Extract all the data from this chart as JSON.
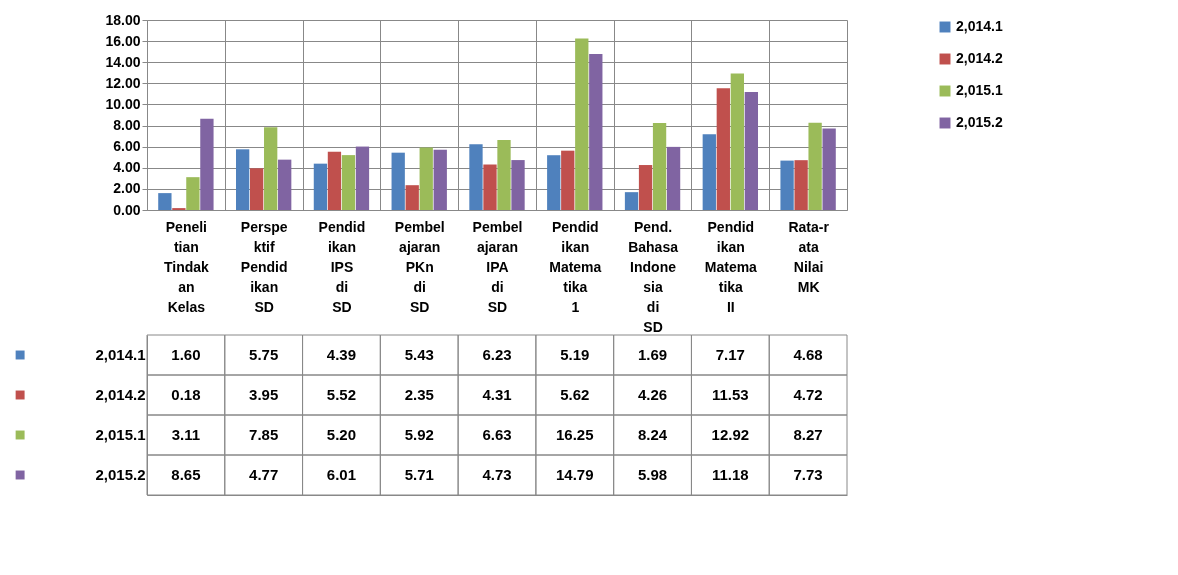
{
  "chart_data": {
    "type": "bar",
    "categories": [
      "Penelitian Tindakan Kelas",
      "Perspektif Pendidikan SD",
      "Pendidikan IPS di SD",
      "Pembelajaran PKn di SD",
      "Pembelajaran IPA di SD",
      "Pendidikan Matematika 1",
      "Pend. Bahasa Indonesia di SD",
      "Pendidikan Matematika II",
      "Rata-rata Nilai MK"
    ],
    "series": [
      {
        "name": "2,014.1",
        "color": "#4f81bd",
        "values": [
          1.6,
          5.75,
          4.39,
          5.43,
          6.23,
          5.19,
          1.69,
          7.17,
          4.68
        ],
        "value_labels": [
          "1.60",
          "5.75",
          "4.39",
          "5.43",
          "6.23",
          "5.19",
          "1.69",
          "7.17",
          "4.68"
        ]
      },
      {
        "name": "2,014.2",
        "color": "#c0504d",
        "values": [
          0.18,
          3.95,
          5.52,
          2.35,
          4.31,
          5.62,
          4.26,
          11.53,
          4.72
        ],
        "value_labels": [
          "0.18",
          "3.95",
          "5.52",
          "2.35",
          "4.31",
          "5.62",
          "4.26",
          "11.53",
          "4.72"
        ]
      },
      {
        "name": "2,015.1",
        "color": "#9bbb59",
        "values": [
          3.11,
          7.85,
          5.2,
          5.92,
          6.63,
          16.25,
          8.24,
          12.92,
          8.27
        ],
        "value_labels": [
          "3.11",
          "7.85",
          "5.20",
          "5.92",
          "6.63",
          "16.25",
          "8.24",
          "12.92",
          "8.27"
        ]
      },
      {
        "name": "2,015.2",
        "color": "#8064a2",
        "values": [
          8.65,
          4.77,
          6.01,
          5.71,
          4.73,
          14.79,
          5.98,
          11.18,
          7.73
        ],
        "value_labels": [
          "8.65",
          "4.77",
          "6.01",
          "5.71",
          "4.73",
          "14.79",
          "5.98",
          "11.18",
          "7.73"
        ]
      }
    ],
    "ylim": [
      0,
      18
    ],
    "yticks": [
      {
        "value": 0,
        "label": "0.00"
      },
      {
        "value": 2,
        "label": "2.00"
      },
      {
        "value": 4,
        "label": "4.00"
      },
      {
        "value": 6,
        "label": "6.00"
      },
      {
        "value": 8,
        "label": "8.00"
      },
      {
        "value": 10,
        "label": "10.00"
      },
      {
        "value": 12,
        "label": "12.00"
      },
      {
        "value": 14,
        "label": "14.00"
      },
      {
        "value": 16,
        "label": "16.00"
      },
      {
        "value": 18,
        "label": "18.00"
      }
    ],
    "grid": "y",
    "legend": "right"
  }
}
